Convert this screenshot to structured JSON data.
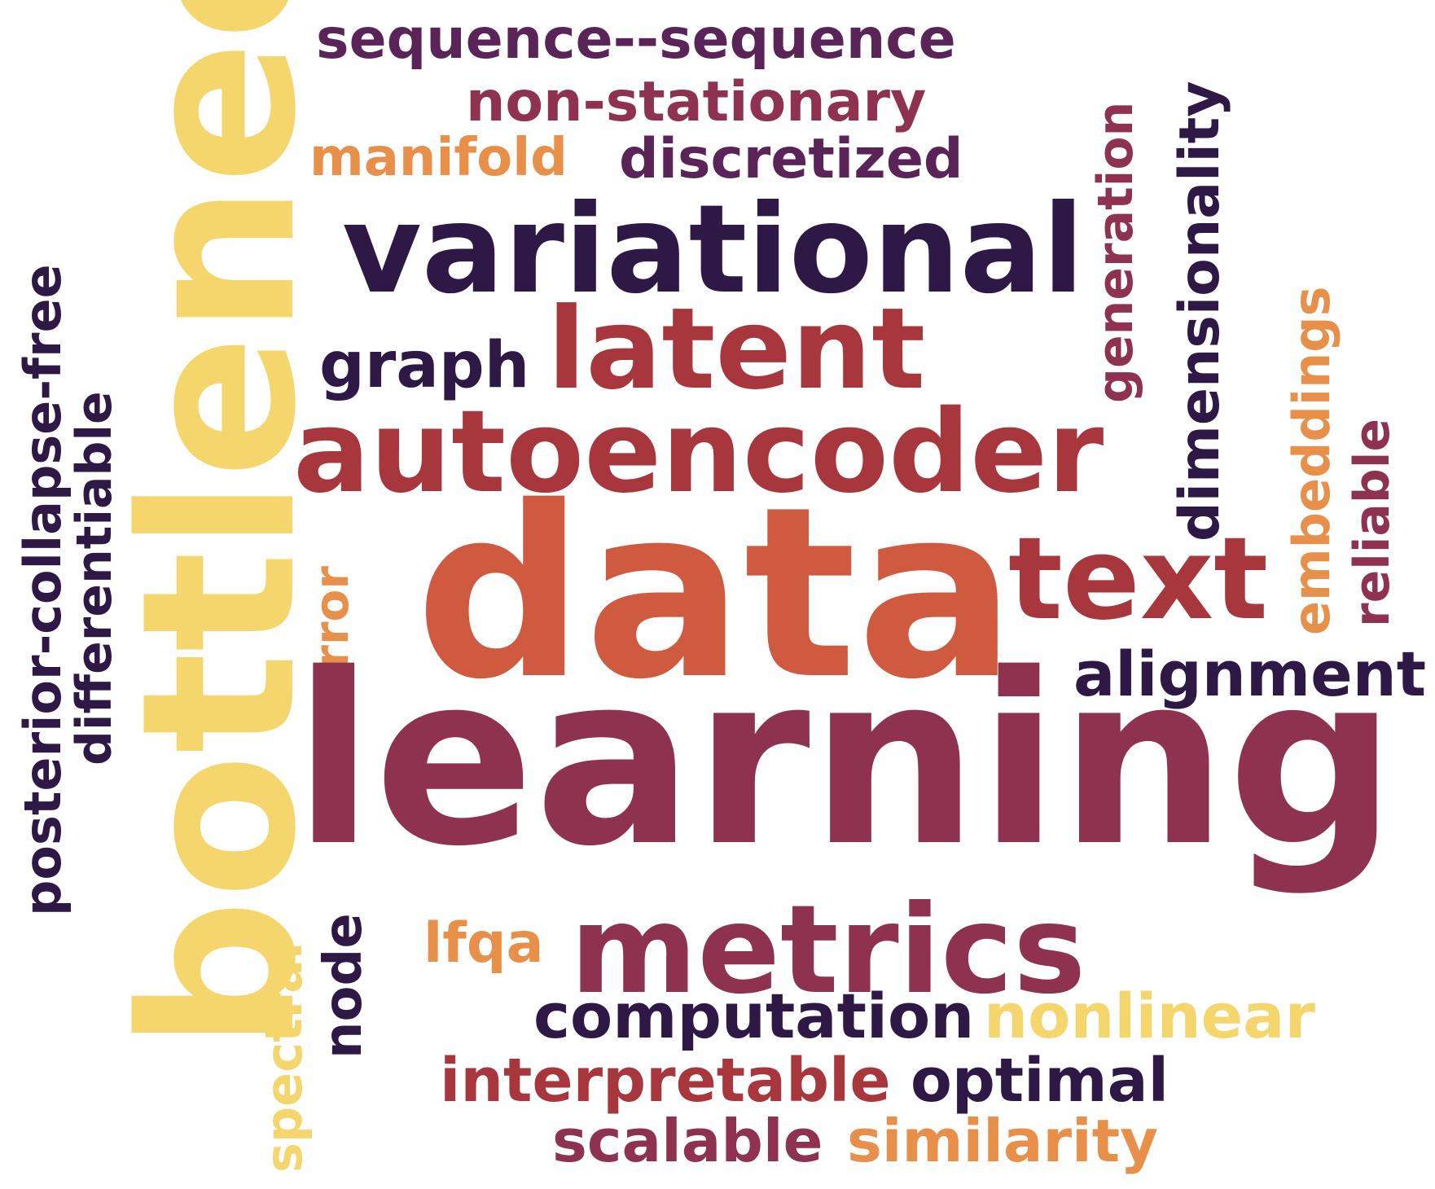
{
  "colors": {
    "background": "#ffffff",
    "deep_purple": "#2e1845",
    "plum": "#5a2459",
    "wine": "#8e3250",
    "crimson": "#a8363d",
    "terracotta": "#d05a40",
    "orange": "#e8904a",
    "yellow": "#f5d66d"
  },
  "words": {
    "sequence": "sequence--sequence",
    "non_stationary": "non-stationary",
    "manifold": "manifold",
    "discretized": "discretized",
    "variational": "variational",
    "graph": "graph",
    "latent": "latent",
    "autoencoder": "autoencoder",
    "data": "data",
    "text": "text",
    "alignment": "alignment",
    "learning": "learning",
    "metrics": "metrics",
    "lfqa": "lfqa",
    "computation": "computation",
    "nonlinear": "nonlinear",
    "interpretable": "interpretable",
    "optimal": "optimal",
    "scalable": "scalable",
    "similarity": "similarity",
    "bottleneck": "bottleneck",
    "posterior": "posterior-collapse-free",
    "differentiable": "differentiable",
    "error": "error",
    "spectral": "spectral",
    "node": "node",
    "generation": "generation",
    "dimensionality": "dimensionality",
    "embeddings": "embeddings",
    "reliable": "reliable"
  }
}
